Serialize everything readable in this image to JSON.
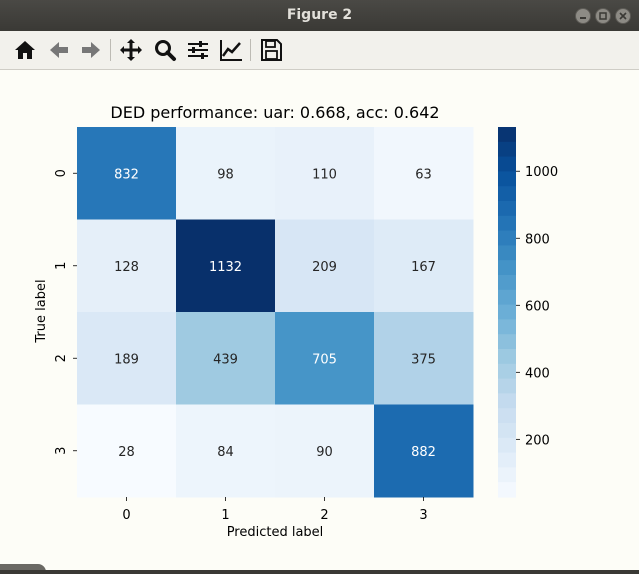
{
  "window": {
    "title": "Figure 2"
  },
  "toolbar": {
    "buttons": [
      {
        "name": "home-icon"
      },
      {
        "name": "back-icon"
      },
      {
        "name": "forward-icon"
      },
      {
        "name": "pan-icon"
      },
      {
        "name": "zoom-icon"
      },
      {
        "name": "configure-subplots-icon"
      },
      {
        "name": "edit-axis-icon"
      },
      {
        "name": "save-icon"
      }
    ]
  },
  "chart_data": {
    "type": "heatmap",
    "title": "DED performance: uar: 0.668, acc: 0.642",
    "xlabel": "Predicted label",
    "ylabel": "True label",
    "x_categories": [
      "0",
      "1",
      "2",
      "3"
    ],
    "y_categories": [
      "0",
      "1",
      "2",
      "3"
    ],
    "values": [
      [
        832,
        98,
        110,
        63
      ],
      [
        128,
        1132,
        209,
        167
      ],
      [
        189,
        439,
        705,
        375
      ],
      [
        28,
        84,
        90,
        882
      ]
    ],
    "colormap": "Blues",
    "colorbar": {
      "range": [
        28,
        1132
      ],
      "ticks": [
        200,
        400,
        600,
        800,
        1000
      ],
      "tick_labels": [
        "200",
        "400",
        "600",
        "800",
        "1000"
      ]
    }
  }
}
